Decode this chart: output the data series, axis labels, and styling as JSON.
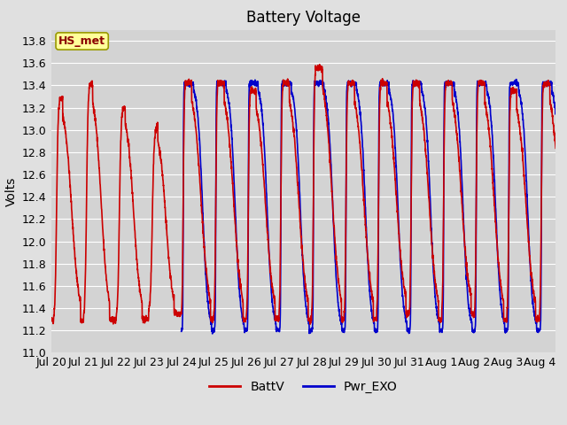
{
  "title": "Battery Voltage",
  "ylabel": "Volts",
  "ylim": [
    11.0,
    13.9
  ],
  "yticks": [
    11.0,
    11.2,
    11.4,
    11.6,
    11.8,
    12.0,
    12.2,
    12.4,
    12.6,
    12.8,
    13.0,
    13.2,
    13.4,
    13.6,
    13.8
  ],
  "x_labels": [
    "Jul 20",
    "Jul 21",
    "Jul 22",
    "Jul 23",
    "Jul 24",
    "Jul 25",
    "Jul 26",
    "Jul 27",
    "Jul 28",
    "Jul 29",
    "Jul 30",
    "Jul 31",
    "Aug 1",
    "Aug 2",
    "Aug 3",
    "Aug 4"
  ],
  "batt_color": "#cc0000",
  "pwr_color": "#0000cc",
  "fig_bg_color": "#e0e0e0",
  "plot_bg_color": "#d3d3d3",
  "title_fontsize": 12,
  "label_fontsize": 10,
  "tick_fontsize": 9,
  "annotation_text": "HS_met",
  "annotation_bg": "#ffff99",
  "annotation_border": "#999900",
  "legend_items": [
    "BattV",
    "Pwr_EXO"
  ],
  "n_days": 15.5,
  "pts_per_day": 200
}
